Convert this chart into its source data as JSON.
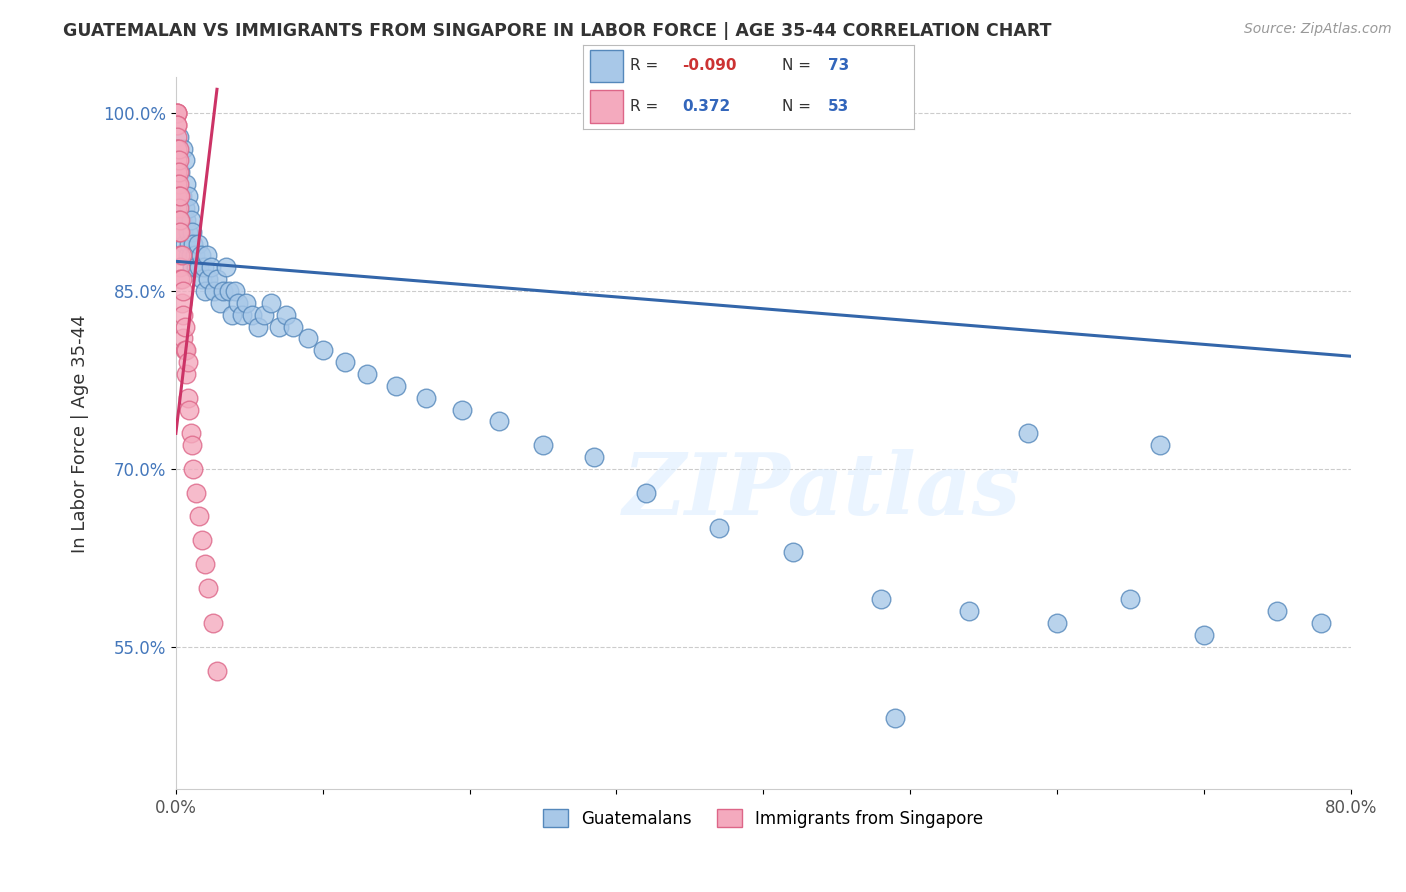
{
  "title": "GUATEMALAN VS IMMIGRANTS FROM SINGAPORE IN LABOR FORCE | AGE 35-44 CORRELATION CHART",
  "source": "Source: ZipAtlas.com",
  "ylabel": "In Labor Force | Age 35-44",
  "xlim": [
    0.0,
    0.8
  ],
  "ylim": [
    0.43,
    1.03
  ],
  "xticks": [
    0.0,
    0.1,
    0.2,
    0.3,
    0.4,
    0.5,
    0.6,
    0.7,
    0.8
  ],
  "xticklabels": [
    "0.0%",
    "",
    "",
    "",
    "",
    "",
    "",
    "",
    "80.0%"
  ],
  "yticks": [
    0.55,
    0.7,
    0.85,
    1.0
  ],
  "yticklabels": [
    "55.0%",
    "70.0%",
    "85.0%",
    "100.0%"
  ],
  "blue_R": -0.09,
  "blue_N": 73,
  "pink_R": 0.372,
  "pink_N": 53,
  "blue_color": "#a8c8e8",
  "blue_edge": "#5588bb",
  "pink_color": "#f4aabe",
  "pink_edge": "#dd6688",
  "blue_line_color": "#3366aa",
  "pink_line_color": "#cc3366",
  "watermark": "ZIPatlas",
  "legend_guatemalans": "Guatemalans",
  "legend_singapore": "Immigrants from Singapore",
  "blue_scatter_x": [
    0.002,
    0.003,
    0.004,
    0.004,
    0.005,
    0.005,
    0.006,
    0.006,
    0.006,
    0.007,
    0.007,
    0.008,
    0.008,
    0.008,
    0.009,
    0.009,
    0.01,
    0.01,
    0.011,
    0.011,
    0.012,
    0.013,
    0.014,
    0.015,
    0.016,
    0.017,
    0.018,
    0.019,
    0.02,
    0.021,
    0.022,
    0.024,
    0.026,
    0.028,
    0.03,
    0.032,
    0.034,
    0.036,
    0.038,
    0.04,
    0.042,
    0.045,
    0.048,
    0.052,
    0.056,
    0.06,
    0.065,
    0.07,
    0.075,
    0.08,
    0.09,
    0.1,
    0.115,
    0.13,
    0.15,
    0.17,
    0.195,
    0.22,
    0.25,
    0.285,
    0.32,
    0.37,
    0.42,
    0.48,
    0.54,
    0.6,
    0.65,
    0.7,
    0.75,
    0.67,
    0.58,
    0.78,
    0.49
  ],
  "blue_scatter_y": [
    0.98,
    0.95,
    0.93,
    0.91,
    0.97,
    0.9,
    0.96,
    0.92,
    0.89,
    0.94,
    0.91,
    0.93,
    0.9,
    0.88,
    0.92,
    0.89,
    0.91,
    0.88,
    0.9,
    0.87,
    0.89,
    0.88,
    0.87,
    0.89,
    0.87,
    0.88,
    0.86,
    0.87,
    0.85,
    0.88,
    0.86,
    0.87,
    0.85,
    0.86,
    0.84,
    0.85,
    0.87,
    0.85,
    0.83,
    0.85,
    0.84,
    0.83,
    0.84,
    0.83,
    0.82,
    0.83,
    0.84,
    0.82,
    0.83,
    0.82,
    0.81,
    0.8,
    0.79,
    0.78,
    0.77,
    0.76,
    0.75,
    0.74,
    0.72,
    0.71,
    0.68,
    0.65,
    0.63,
    0.59,
    0.58,
    0.57,
    0.59,
    0.56,
    0.58,
    0.72,
    0.73,
    0.57,
    0.49
  ],
  "pink_scatter_x": [
    0.001,
    0.001,
    0.001,
    0.001,
    0.001,
    0.001,
    0.001,
    0.001,
    0.001,
    0.001,
    0.001,
    0.001,
    0.001,
    0.001,
    0.001,
    0.001,
    0.002,
    0.002,
    0.002,
    0.002,
    0.002,
    0.002,
    0.002,
    0.002,
    0.003,
    0.003,
    0.003,
    0.003,
    0.003,
    0.003,
    0.004,
    0.004,
    0.004,
    0.005,
    0.005,
    0.005,
    0.006,
    0.006,
    0.007,
    0.007,
    0.008,
    0.008,
    0.009,
    0.01,
    0.011,
    0.012,
    0.014,
    0.016,
    0.018,
    0.02,
    0.022,
    0.025,
    0.028
  ],
  "pink_scatter_y": [
    1.0,
    1.0,
    1.0,
    0.99,
    0.99,
    0.98,
    0.97,
    0.97,
    0.96,
    0.96,
    0.95,
    0.95,
    0.94,
    0.94,
    0.93,
    0.92,
    0.97,
    0.96,
    0.95,
    0.94,
    0.93,
    0.92,
    0.91,
    0.9,
    0.93,
    0.91,
    0.9,
    0.88,
    0.87,
    0.86,
    0.88,
    0.86,
    0.84,
    0.85,
    0.83,
    0.81,
    0.82,
    0.8,
    0.8,
    0.78,
    0.79,
    0.76,
    0.75,
    0.73,
    0.72,
    0.7,
    0.68,
    0.66,
    0.64,
    0.62,
    0.6,
    0.57,
    0.53
  ],
  "pink_line_x0": 0.0,
  "pink_line_x1": 0.028,
  "pink_line_y0": 0.73,
  "pink_line_y1": 1.02,
  "blue_line_x0": 0.0,
  "blue_line_x1": 0.8,
  "blue_line_y0": 0.875,
  "blue_line_y1": 0.795
}
